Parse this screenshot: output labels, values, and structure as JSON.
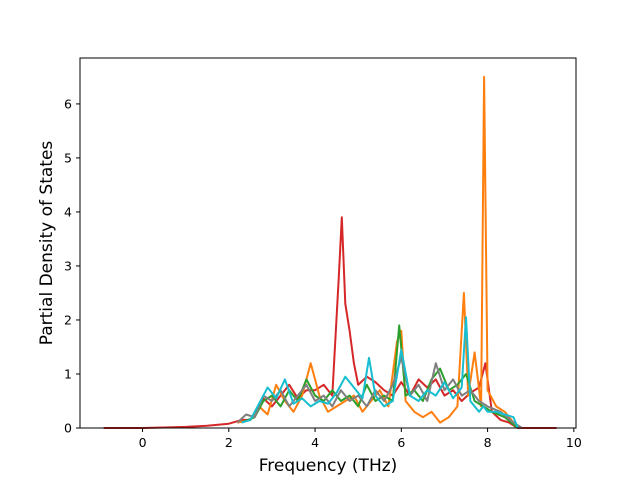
{
  "chart_data": {
    "type": "line",
    "xlabel": "Frequency (THz)",
    "ylabel": "Partial Density of States",
    "xlim": [
      -1.45,
      10.05
    ],
    "ylim": [
      0,
      6.85
    ],
    "xticks": [
      0,
      2,
      4,
      6,
      8,
      10
    ],
    "yticks": [
      0,
      1,
      2,
      3,
      4,
      5,
      6
    ],
    "grid": false,
    "series": [
      {
        "color": "#d62728",
        "points": [
          [
            -0.9,
            0
          ],
          [
            0,
            0
          ],
          [
            0.5,
            0.01
          ],
          [
            1,
            0.02
          ],
          [
            1.5,
            0.04
          ],
          [
            2,
            0.08
          ],
          [
            2.3,
            0.15
          ],
          [
            2.5,
            0.15
          ],
          [
            2.8,
            0.55
          ],
          [
            3.0,
            0.4
          ],
          [
            3.2,
            0.6
          ],
          [
            3.4,
            0.8
          ],
          [
            3.6,
            0.55
          ],
          [
            3.8,
            0.7
          ],
          [
            4.0,
            0.7
          ],
          [
            4.2,
            0.8
          ],
          [
            4.4,
            0.6
          ],
          [
            4.55,
            2.8
          ],
          [
            4.62,
            3.9
          ],
          [
            4.7,
            2.3
          ],
          [
            4.8,
            1.8
          ],
          [
            4.9,
            1.2
          ],
          [
            5.0,
            0.8
          ],
          [
            5.2,
            0.95
          ],
          [
            5.4,
            0.85
          ],
          [
            5.6,
            0.7
          ],
          [
            5.8,
            0.6
          ],
          [
            6.0,
            0.85
          ],
          [
            6.2,
            0.6
          ],
          [
            6.4,
            0.9
          ],
          [
            6.6,
            0.75
          ],
          [
            6.8,
            0.9
          ],
          [
            7.0,
            0.6
          ],
          [
            7.2,
            0.7
          ],
          [
            7.4,
            0.5
          ],
          [
            7.6,
            0.65
          ],
          [
            7.8,
            0.75
          ],
          [
            7.95,
            1.2
          ],
          [
            8.1,
            0.3
          ],
          [
            8.3,
            0.15
          ],
          [
            8.5,
            0.1
          ],
          [
            8.7,
            0
          ],
          [
            9.6,
            0
          ]
        ]
      },
      {
        "color": "#ff7f0e",
        "points": [
          [
            2.2,
            0.1
          ],
          [
            2.5,
            0.15
          ],
          [
            2.7,
            0.4
          ],
          [
            2.9,
            0.25
          ],
          [
            3.1,
            0.8
          ],
          [
            3.3,
            0.5
          ],
          [
            3.5,
            0.3
          ],
          [
            3.7,
            0.6
          ],
          [
            3.9,
            1.2
          ],
          [
            4.1,
            0.6
          ],
          [
            4.3,
            0.3
          ],
          [
            4.5,
            0.4
          ],
          [
            4.7,
            0.5
          ],
          [
            4.9,
            0.6
          ],
          [
            5.1,
            0.3
          ],
          [
            5.3,
            0.5
          ],
          [
            5.5,
            0.7
          ],
          [
            5.7,
            0.4
          ],
          [
            5.9,
            1.6
          ],
          [
            6.0,
            1.8
          ],
          [
            6.1,
            0.5
          ],
          [
            6.3,
            0.3
          ],
          [
            6.5,
            0.2
          ],
          [
            6.7,
            0.3
          ],
          [
            6.9,
            0.1
          ],
          [
            7.1,
            0.2
          ],
          [
            7.3,
            0.4
          ],
          [
            7.45,
            2.5
          ],
          [
            7.55,
            0.6
          ],
          [
            7.7,
            1.4
          ],
          [
            7.85,
            0.4
          ],
          [
            7.92,
            6.5
          ],
          [
            8.0,
            0.7
          ],
          [
            8.2,
            0.4
          ],
          [
            8.4,
            0.3
          ],
          [
            8.6,
            0.1
          ],
          [
            8.7,
            0
          ]
        ]
      },
      {
        "color": "#2ca02c",
        "points": [
          [
            2.3,
            0.1
          ],
          [
            2.6,
            0.2
          ],
          [
            2.8,
            0.5
          ],
          [
            3.0,
            0.6
          ],
          [
            3.2,
            0.4
          ],
          [
            3.4,
            0.7
          ],
          [
            3.6,
            0.5
          ],
          [
            3.8,
            0.9
          ],
          [
            4.0,
            0.6
          ],
          [
            4.2,
            0.5
          ],
          [
            4.4,
            0.7
          ],
          [
            4.6,
            0.5
          ],
          [
            4.8,
            0.6
          ],
          [
            5.0,
            0.4
          ],
          [
            5.2,
            0.8
          ],
          [
            5.4,
            0.5
          ],
          [
            5.6,
            0.6
          ],
          [
            5.8,
            0.5
          ],
          [
            5.95,
            1.9
          ],
          [
            6.1,
            0.6
          ],
          [
            6.3,
            0.7
          ],
          [
            6.5,
            0.5
          ],
          [
            6.7,
            0.9
          ],
          [
            6.9,
            1.1
          ],
          [
            7.1,
            0.7
          ],
          [
            7.3,
            0.8
          ],
          [
            7.5,
            1.0
          ],
          [
            7.7,
            0.5
          ],
          [
            7.9,
            0.4
          ],
          [
            8.1,
            0.3
          ],
          [
            8.4,
            0.2
          ],
          [
            8.7,
            0
          ]
        ]
      },
      {
        "color": "#7f7f7f",
        "points": [
          [
            2.2,
            0.1
          ],
          [
            2.4,
            0.25
          ],
          [
            2.6,
            0.2
          ],
          [
            2.8,
            0.6
          ],
          [
            3.0,
            0.5
          ],
          [
            3.2,
            0.7
          ],
          [
            3.4,
            0.4
          ],
          [
            3.6,
            0.6
          ],
          [
            3.8,
            0.8
          ],
          [
            4.0,
            0.5
          ],
          [
            4.2,
            0.6
          ],
          [
            4.4,
            0.4
          ],
          [
            4.6,
            0.7
          ],
          [
            4.8,
            0.5
          ],
          [
            5.0,
            0.6
          ],
          [
            5.2,
            0.4
          ],
          [
            5.4,
            0.7
          ],
          [
            5.6,
            0.5
          ],
          [
            5.8,
            0.8
          ],
          [
            6.0,
            1.3
          ],
          [
            6.2,
            0.6
          ],
          [
            6.4,
            0.8
          ],
          [
            6.6,
            0.5
          ],
          [
            6.8,
            1.2
          ],
          [
            7.0,
            0.7
          ],
          [
            7.2,
            0.9
          ],
          [
            7.4,
            0.6
          ],
          [
            7.6,
            0.7
          ],
          [
            7.8,
            0.5
          ],
          [
            8.0,
            0.4
          ],
          [
            8.3,
            0.3
          ],
          [
            8.6,
            0.1
          ],
          [
            8.8,
            0
          ]
        ]
      },
      {
        "color": "#17becf",
        "points": [
          [
            2.3,
            0.1
          ],
          [
            2.5,
            0.15
          ],
          [
            2.7,
            0.45
          ],
          [
            2.9,
            0.75
          ],
          [
            3.1,
            0.55
          ],
          [
            3.3,
            0.9
          ],
          [
            3.5,
            0.45
          ],
          [
            3.7,
            0.55
          ],
          [
            3.9,
            0.4
          ],
          [
            4.1,
            0.5
          ],
          [
            4.3,
            0.45
          ],
          [
            4.5,
            0.65
          ],
          [
            4.7,
            0.95
          ],
          [
            4.9,
            0.75
          ],
          [
            5.1,
            0.55
          ],
          [
            5.25,
            1.3
          ],
          [
            5.4,
            0.6
          ],
          [
            5.6,
            0.4
          ],
          [
            5.8,
            0.5
          ],
          [
            6.0,
            1.45
          ],
          [
            6.2,
            0.6
          ],
          [
            6.4,
            0.5
          ],
          [
            6.6,
            0.7
          ],
          [
            6.8,
            0.6
          ],
          [
            7.0,
            0.85
          ],
          [
            7.2,
            0.55
          ],
          [
            7.4,
            0.75
          ],
          [
            7.5,
            2.05
          ],
          [
            7.6,
            0.5
          ],
          [
            7.8,
            0.3
          ],
          [
            7.9,
            0.4
          ],
          [
            8.0,
            0.3
          ],
          [
            8.2,
            0.3
          ],
          [
            8.4,
            0.25
          ],
          [
            8.6,
            0.2
          ],
          [
            8.7,
            0
          ]
        ]
      }
    ]
  }
}
